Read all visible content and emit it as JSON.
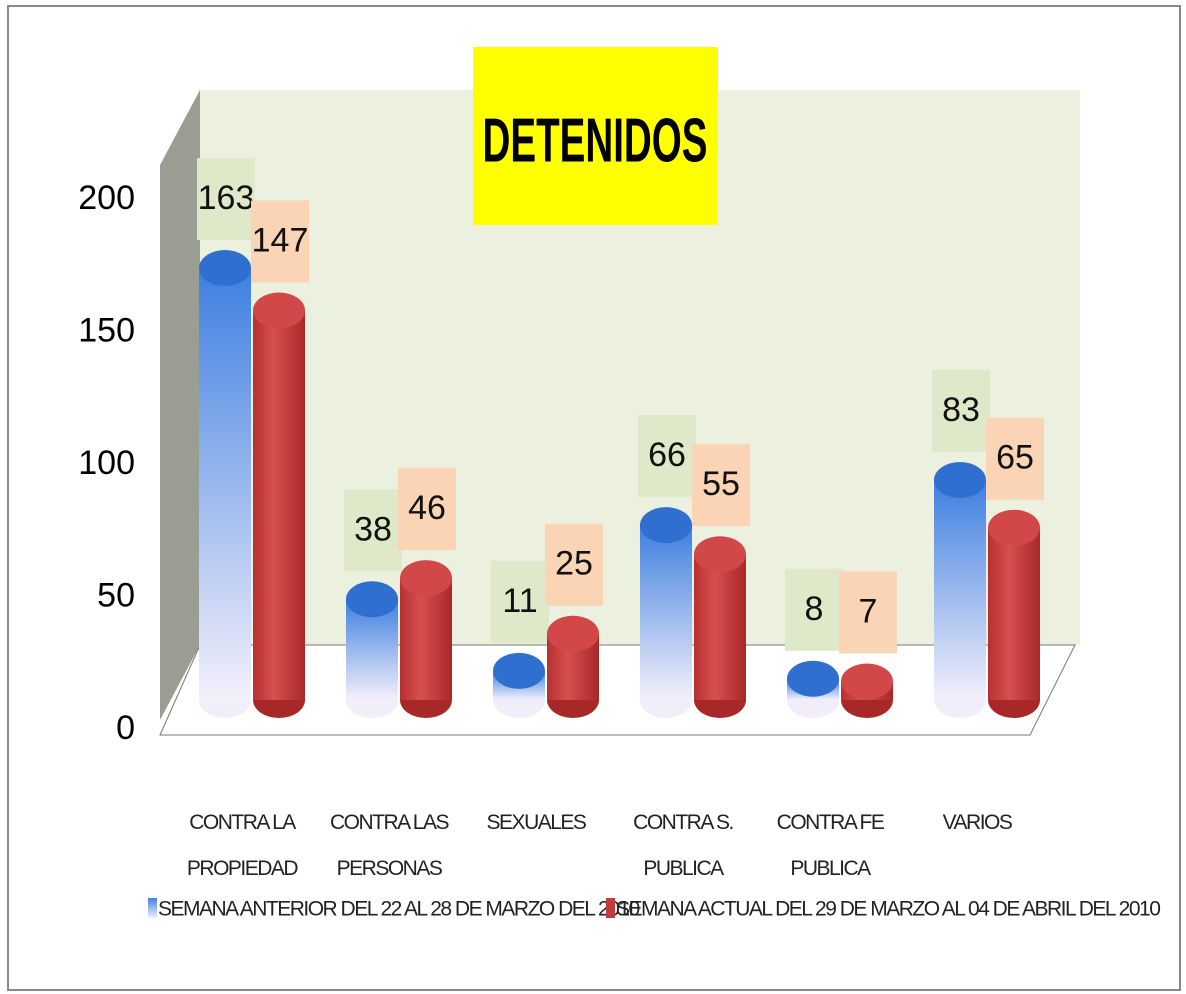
{
  "chart_data": {
    "type": "bar",
    "title": "DETENIDOS",
    "categories": [
      "CONTRA LA PROPIEDAD",
      "CONTRA LAS PERSONAS",
      "SEXUALES",
      "CONTRA S. PUBLICA",
      "CONTRA FE PUBLICA",
      "VARIOS"
    ],
    "series": [
      {
        "name": "SEMANA ANTERIOR DEL 22 AL 28 DE MARZO DEL 2010",
        "color": "#3d7fe0",
        "values": [
          163,
          38,
          11,
          66,
          8,
          83
        ]
      },
      {
        "name": "SEMANA ACTUAL DEL 29 DE MARZO AL 04 DE ABRIL DEL 2010",
        "color": "#c23a3a",
        "values": [
          147,
          46,
          25,
          55,
          7,
          65
        ]
      }
    ],
    "ylim": [
      0,
      200
    ],
    "yticks": [
      0,
      50,
      100,
      150,
      200
    ],
    "grid": false,
    "legend": "bottom"
  }
}
